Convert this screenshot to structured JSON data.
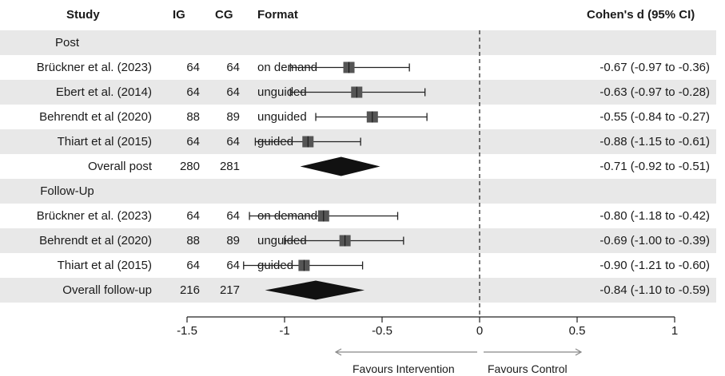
{
  "header": {
    "study": "Study",
    "ig": "IG",
    "cg": "CG",
    "format": "Format",
    "effect": "Cohen's d (95% CI)"
  },
  "rows": [
    {
      "kind": "section",
      "label": "Post",
      "shaded": true
    },
    {
      "kind": "study",
      "study": "Brückner et al. (2023)",
      "ig": "64",
      "cg": "64",
      "format": "on demand",
      "ci_text": "-0.67 (-0.97 to -0.36)",
      "shaded": false
    },
    {
      "kind": "study",
      "study": "Ebert et al. (2014)",
      "ig": "64",
      "cg": "64",
      "format": "unguided",
      "ci_text": "-0.63 (-0.97 to -0.28)",
      "shaded": true
    },
    {
      "kind": "study",
      "study": "Behrendt et al (2020)",
      "ig": "88",
      "cg": "89",
      "format": "unguided",
      "ci_text": "-0.55 (-0.84 to -0.27)",
      "shaded": false
    },
    {
      "kind": "study",
      "study": "Thiart et al (2015)",
      "ig": "64",
      "cg": "64",
      "format": "guided",
      "ci_text": "-0.88 (-1.15 to -0.61)",
      "shaded": true
    },
    {
      "kind": "overall",
      "study": "Overall post",
      "ig": "280",
      "cg": "281",
      "format": "",
      "ci_text": "-0.71 (-0.92 to -0.51)",
      "shaded": false
    },
    {
      "kind": "section",
      "label": "Follow-Up",
      "shaded": true
    },
    {
      "kind": "study",
      "study": "Brückner et al. (2023)",
      "ig": "64",
      "cg": "64",
      "format": "on demand",
      "ci_text": "-0.80 (-1.18 to -0.42)",
      "shaded": false
    },
    {
      "kind": "study",
      "study": "Behrendt et al (2020)",
      "ig": "88",
      "cg": "89",
      "format": "unguided",
      "ci_text": "-0.69 (-1.00 to -0.39)",
      "shaded": true
    },
    {
      "kind": "study",
      "study": "Thiart et al (2015)",
      "ig": "64",
      "cg": "64",
      "format": "guided",
      "ci_text": "-0.90 (-1.21 to -0.60)",
      "shaded": false
    },
    {
      "kind": "overall",
      "study": "Overall follow-up",
      "ig": "216",
      "cg": "217",
      "format": "",
      "ci_text": "-0.84 (-1.10 to -0.59)",
      "shaded": true
    }
  ],
  "axis": {
    "ticks": [
      -1.5,
      -1,
      -0.5,
      0,
      0.5,
      1
    ],
    "tick_labels": [
      "-1.5",
      "-1",
      "-0.5",
      "0",
      "0.5",
      "1"
    ],
    "favours_left": "Favours Intervention",
    "favours_right": "Favours Control"
  },
  "colors": {
    "row_shade": "#e8e8e8",
    "square": "#555555",
    "diamond": "#111111",
    "line": "#222222",
    "arrow": "#888888"
  },
  "chart_data": {
    "type": "forest",
    "title": "",
    "xlabel": "",
    "ylabel": "",
    "xlim": [
      -1.5,
      1
    ],
    "null_line": 0,
    "grid": false,
    "groups": [
      {
        "name": "Post",
        "studies": [
          {
            "study": "Brückner et al. (2023)",
            "d": -0.67,
            "lower": -0.97,
            "upper": -0.36
          },
          {
            "study": "Ebert et al. (2014)",
            "d": -0.63,
            "lower": -0.97,
            "upper": -0.28
          },
          {
            "study": "Behrendt et al (2020)",
            "d": -0.55,
            "lower": -0.84,
            "upper": -0.27
          },
          {
            "study": "Thiart et al (2015)",
            "d": -0.88,
            "lower": -1.15,
            "upper": -0.61
          }
        ],
        "overall": {
          "label": "Overall post",
          "d": -0.71,
          "lower": -0.92,
          "upper": -0.51
        }
      },
      {
        "name": "Follow-Up",
        "studies": [
          {
            "study": "Brückner et al. (2023)",
            "d": -0.8,
            "lower": -1.18,
            "upper": -0.42
          },
          {
            "study": "Behrendt et al (2020)",
            "d": -0.69,
            "lower": -1.0,
            "upper": -0.39
          },
          {
            "study": "Thiart et al (2015)",
            "d": -0.9,
            "lower": -1.21,
            "upper": -0.6
          }
        ],
        "overall": {
          "label": "Overall follow-up",
          "d": -0.84,
          "lower": -1.1,
          "upper": -0.59
        }
      }
    ]
  }
}
